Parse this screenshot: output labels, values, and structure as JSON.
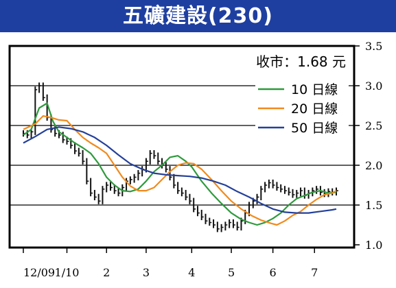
{
  "title": "五礦建設(230)",
  "chart_data": {
    "type": "line",
    "price_note": "收市：1.68 元",
    "y_ticks": [
      "1.0",
      "1.5",
      "2.0",
      "2.5",
      "3.0",
      "3.5"
    ],
    "ylim": [
      1.0,
      3.5
    ],
    "x_ticks": [
      "12/09",
      "1/10",
      "2",
      "3",
      "4",
      "5",
      "6",
      "7"
    ],
    "legend": [
      {
        "label": "10 日線",
        "color": "#2e9a3c"
      },
      {
        "label": "20 日線",
        "color": "#f08a1c"
      },
      {
        "label": "50 日線",
        "color": "#23409a"
      }
    ],
    "grid": {
      "horizontal_lines": [
        1.5,
        2.0,
        2.5,
        3.0
      ]
    },
    "x_range": [
      0,
      158
    ],
    "x_tick_positions": [
      0,
      22,
      42,
      62,
      85,
      105,
      126,
      147
    ],
    "series": [
      {
        "name": "10 日線",
        "color": "#2e9a3c",
        "x": [
          0,
          4,
          8,
          12,
          15,
          18,
          22,
          26,
          30,
          34,
          38,
          42,
          46,
          50,
          54,
          58,
          62,
          66,
          70,
          74,
          78,
          82,
          85,
          90,
          95,
          100,
          105,
          110,
          114,
          118,
          122,
          126,
          130,
          134,
          138,
          142,
          146,
          150,
          154,
          158
        ],
        "values": [
          2.38,
          2.45,
          2.72,
          2.78,
          2.55,
          2.42,
          2.35,
          2.28,
          2.22,
          2.15,
          2.02,
          1.85,
          1.75,
          1.68,
          1.67,
          1.7,
          1.8,
          1.92,
          2.0,
          2.1,
          2.12,
          2.05,
          1.98,
          1.8,
          1.65,
          1.52,
          1.4,
          1.32,
          1.28,
          1.25,
          1.28,
          1.33,
          1.4,
          1.5,
          1.58,
          1.62,
          1.66,
          1.68,
          1.65,
          1.66
        ]
      },
      {
        "name": "20 日線",
        "color": "#f08a1c",
        "x": [
          0,
          6,
          10,
          14,
          18,
          22,
          26,
          30,
          34,
          38,
          42,
          46,
          50,
          54,
          58,
          62,
          66,
          70,
          74,
          78,
          82,
          86,
          90,
          95,
          100,
          105,
          110,
          115,
          120,
          125,
          128,
          132,
          136,
          140,
          144,
          148,
          152,
          156,
          158
        ],
        "values": [
          2.45,
          2.52,
          2.62,
          2.6,
          2.57,
          2.56,
          2.45,
          2.35,
          2.28,
          2.22,
          2.15,
          2.0,
          1.85,
          1.74,
          1.68,
          1.68,
          1.72,
          1.82,
          1.92,
          2.0,
          2.03,
          2.02,
          1.95,
          1.82,
          1.68,
          1.55,
          1.45,
          1.37,
          1.31,
          1.27,
          1.25,
          1.3,
          1.37,
          1.42,
          1.5,
          1.57,
          1.63,
          1.65,
          1.68
        ]
      },
      {
        "name": "50 日線",
        "color": "#23409a",
        "x": [
          0,
          6,
          12,
          18,
          24,
          30,
          36,
          42,
          48,
          54,
          60,
          66,
          72,
          78,
          84,
          90,
          96,
          102,
          108,
          114,
          120,
          126,
          132,
          138,
          144,
          150,
          156,
          158
        ],
        "values": [
          2.28,
          2.36,
          2.45,
          2.48,
          2.46,
          2.42,
          2.35,
          2.25,
          2.13,
          2.02,
          1.95,
          1.9,
          1.88,
          1.87,
          1.86,
          1.84,
          1.8,
          1.75,
          1.67,
          1.6,
          1.52,
          1.45,
          1.41,
          1.4,
          1.4,
          1.42,
          1.44,
          1.45
        ]
      }
    ],
    "price_series": {
      "x": [
        0,
        2,
        4,
        6,
        8,
        10,
        12,
        14,
        16,
        18,
        20,
        22,
        24,
        26,
        28,
        30,
        32,
        34,
        36,
        38,
        40,
        42,
        44,
        46,
        48,
        50,
        52,
        54,
        56,
        58,
        60,
        62,
        64,
        66,
        68,
        70,
        72,
        74,
        76,
        78,
        80,
        82,
        84,
        86,
        88,
        90,
        92,
        94,
        96,
        98,
        100,
        102,
        104,
        106,
        108,
        110,
        112,
        114,
        116,
        118,
        120,
        122,
        124,
        126,
        128,
        130,
        132,
        134,
        136,
        138,
        140,
        142,
        144,
        146,
        148,
        150,
        152,
        154,
        156,
        158
      ],
      "values": [
        2.4,
        2.38,
        2.42,
        2.95,
        3.0,
        2.85,
        2.6,
        2.45,
        2.4,
        2.38,
        2.32,
        2.3,
        2.25,
        2.18,
        2.15,
        2.05,
        1.8,
        1.65,
        1.6,
        1.55,
        1.7,
        1.75,
        1.72,
        1.68,
        1.65,
        1.72,
        1.8,
        1.82,
        1.85,
        1.9,
        1.95,
        2.05,
        2.15,
        2.12,
        2.05,
        2.0,
        1.95,
        1.85,
        1.75,
        1.68,
        1.65,
        1.6,
        1.55,
        1.45,
        1.4,
        1.35,
        1.3,
        1.28,
        1.25,
        1.2,
        1.22,
        1.25,
        1.28,
        1.25,
        1.22,
        1.3,
        1.4,
        1.5,
        1.55,
        1.6,
        1.7,
        1.75,
        1.78,
        1.75,
        1.72,
        1.7,
        1.68,
        1.66,
        1.63,
        1.65,
        1.68,
        1.62,
        1.65,
        1.68,
        1.7,
        1.66,
        1.64,
        1.67,
        1.66,
        1.68
      ]
    }
  }
}
